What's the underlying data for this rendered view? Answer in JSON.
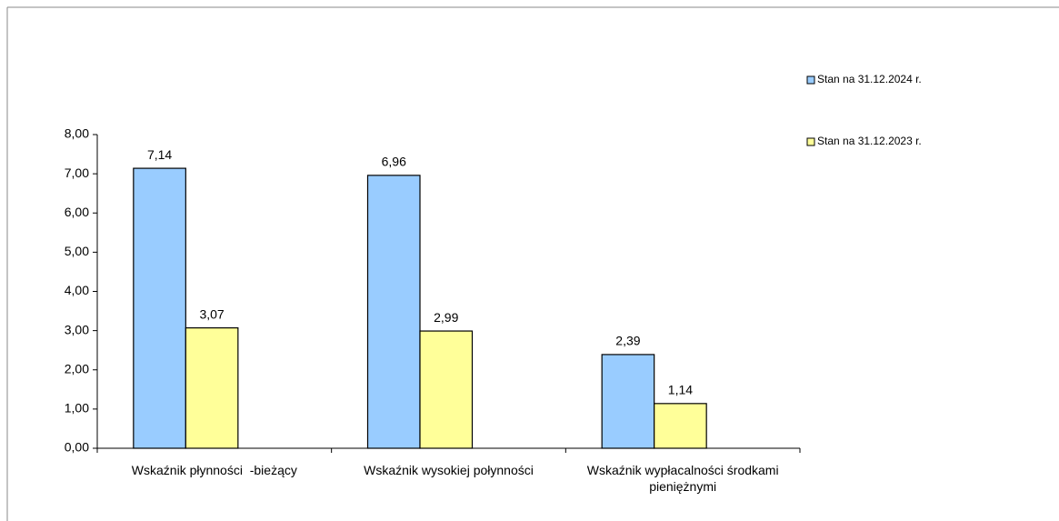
{
  "chart_data": {
    "type": "bar",
    "categories": [
      "Wskaźnik płynności  -bieżący",
      "Wskaźnik wysokiej połynności",
      "Wskaźnik wypłacalności środkami pieniężnymi"
    ],
    "series": [
      {
        "name": "Stan na 31.12.2024 r.",
        "color": "#99ccff",
        "values": [
          7.14,
          6.96,
          2.39
        ],
        "value_labels": [
          "7,14",
          "6,96",
          "2,39"
        ]
      },
      {
        "name": "Stan na 31.12.2023 r.",
        "color": "#ffff99",
        "values": [
          3.07,
          2.99,
          1.14
        ],
        "value_labels": [
          "3,07",
          "2,99",
          "1,14"
        ]
      }
    ],
    "ylim": [
      0,
      8
    ],
    "yticks": [
      {
        "value": 0,
        "label": "0,00"
      },
      {
        "value": 1,
        "label": "1,00"
      },
      {
        "value": 2,
        "label": "2,00"
      },
      {
        "value": 3,
        "label": "3,00"
      },
      {
        "value": 4,
        "label": "4,00"
      },
      {
        "value": 5,
        "label": "5,00"
      },
      {
        "value": 6,
        "label": "6,00"
      },
      {
        "value": 7,
        "label": "7,00"
      },
      {
        "value": 8,
        "label": "8,00"
      }
    ],
    "legend": "right"
  }
}
